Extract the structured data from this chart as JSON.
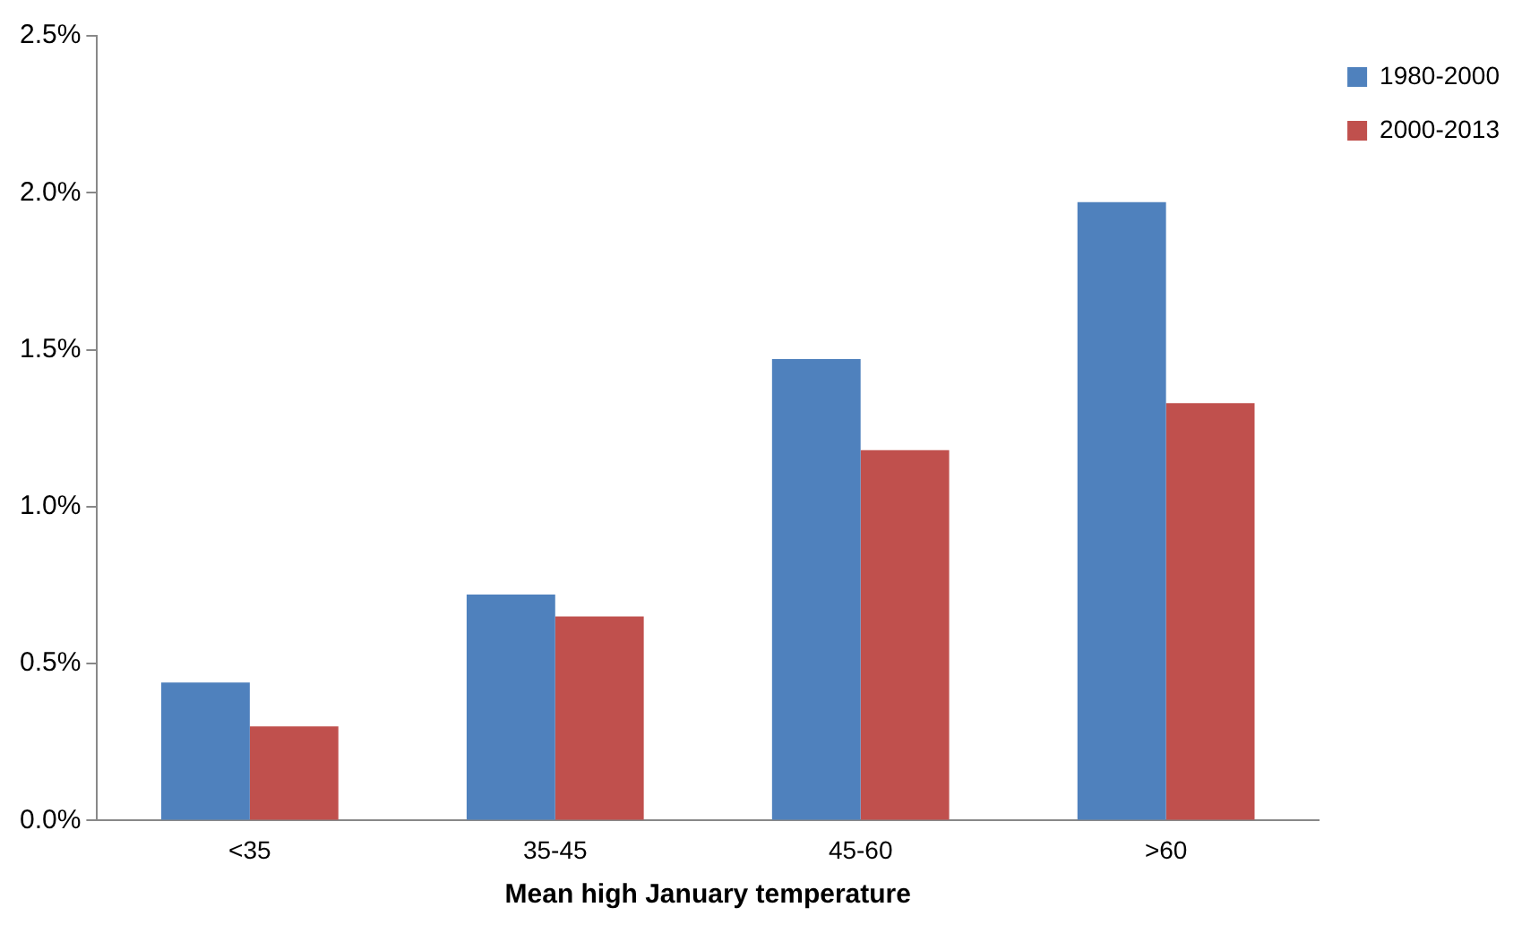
{
  "chart_data": {
    "type": "bar",
    "xlabel": "Mean high January temperature",
    "categories": [
      "<35",
      "35-45",
      "45-60",
      ">60"
    ],
    "series": [
      {
        "name": "1980-2000",
        "color": "#4f81bd",
        "values": [
          0.44,
          0.72,
          1.47,
          1.97
        ]
      },
      {
        "name": "2000-2013",
        "color": "#c0504d",
        "values": [
          0.3,
          0.65,
          1.18,
          1.33
        ]
      }
    ],
    "ylim": [
      0,
      2.5
    ],
    "yticks": [
      {
        "value": 0,
        "label": "0.0%"
      },
      {
        "value": 0.5,
        "label": "0.5%"
      },
      {
        "value": 1,
        "label": "1.0%"
      },
      {
        "value": 1.5,
        "label": "1.5%"
      },
      {
        "value": 2,
        "label": "2.0%"
      },
      {
        "value": 2.5,
        "label": "2.5%"
      }
    ],
    "grid": false,
    "legend": "top right"
  }
}
